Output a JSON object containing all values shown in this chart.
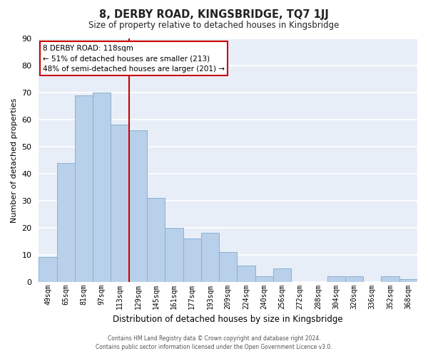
{
  "title": "8, DERBY ROAD, KINGSBRIDGE, TQ7 1JJ",
  "subtitle": "Size of property relative to detached houses in Kingsbridge",
  "xlabel": "Distribution of detached houses by size in Kingsbridge",
  "ylabel": "Number of detached properties",
  "categories": [
    "49sqm",
    "65sqm",
    "81sqm",
    "97sqm",
    "113sqm",
    "129sqm",
    "145sqm",
    "161sqm",
    "177sqm",
    "193sqm",
    "209sqm",
    "224sqm",
    "240sqm",
    "256sqm",
    "272sqm",
    "288sqm",
    "304sqm",
    "320sqm",
    "336sqm",
    "352sqm",
    "368sqm"
  ],
  "values": [
    9,
    44,
    69,
    70,
    58,
    56,
    31,
    20,
    16,
    18,
    11,
    6,
    2,
    5,
    0,
    0,
    2,
    2,
    0,
    2,
    1
  ],
  "bar_color": "#b8d0ea",
  "bar_edge_color": "#8ab0d0",
  "vline_x": 4.5,
  "vline_color": "#cc0000",
  "annotation_title": "8 DERBY ROAD: 118sqm",
  "annotation_line1": "← 51% of detached houses are smaller (213)",
  "annotation_line2": "48% of semi-detached houses are larger (201) →",
  "annotation_box_color": "#ffffff",
  "annotation_box_edge": "#cc0000",
  "ylim": [
    0,
    90
  ],
  "yticks": [
    0,
    10,
    20,
    30,
    40,
    50,
    60,
    70,
    80,
    90
  ],
  "footer1": "Contains HM Land Registry data © Crown copyright and database right 2024.",
  "footer2": "Contains public sector information licensed under the Open Government Licence v3.0.",
  "bg_color": "#e8eef8",
  "fig_bg_color": "#ffffff",
  "grid_color": "#ffffff"
}
